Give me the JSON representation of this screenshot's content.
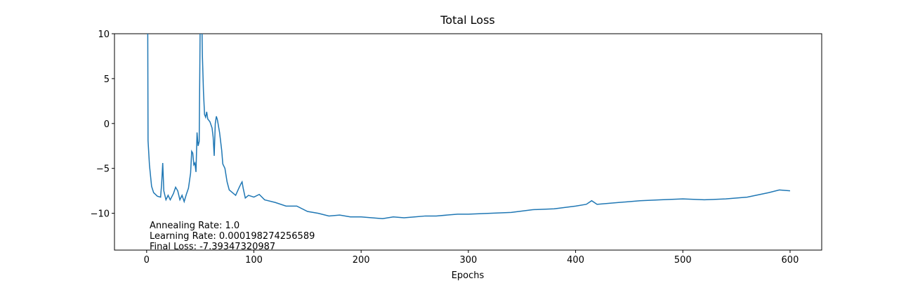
{
  "chart_data": {
    "type": "line",
    "title": "Total Loss",
    "x_label": "Epochs",
    "annotations": [
      "Annealing Rate: 1.0",
      "Learning Rate: 0.000198274256589",
      "Final Loss: -7.39347320987"
    ],
    "color": "#1f77b4",
    "x": [
      1,
      1.3,
      2.6,
      4.6,
      6.5,
      10,
      13,
      14,
      15,
      16,
      18,
      20,
      22,
      25,
      27,
      29,
      31,
      33,
      35,
      37,
      39,
      41,
      42,
      43,
      44,
      45,
      46,
      47,
      48,
      49,
      50,
      51,
      52,
      53,
      54,
      55,
      56,
      57,
      59,
      61,
      62,
      63,
      64,
      65,
      66,
      68,
      70,
      71,
      73,
      75,
      77,
      80,
      83,
      86,
      88,
      89,
      90,
      92,
      95,
      100,
      105,
      110,
      120,
      130,
      140,
      150,
      160,
      170,
      180,
      190,
      200,
      210,
      220,
      230,
      240,
      250,
      260,
      270,
      280,
      290,
      300,
      320,
      340,
      360,
      380,
      400,
      410,
      415,
      420,
      440,
      460,
      480,
      500,
      520,
      540,
      560,
      580,
      590,
      600
    ],
    "values": [
      12,
      -1.9,
      -4.6,
      -7,
      -7.7,
      -8.1,
      -8.2,
      -6.7,
      -4.4,
      -7.5,
      -8.5,
      -8.0,
      -8.5,
      -7.8,
      -7.1,
      -7.5,
      -8.5,
      -8.0,
      -8.7,
      -7.9,
      -7.2,
      -5.5,
      -3.1,
      -3.3,
      -4.6,
      -4.4,
      -5.4,
      -1.0,
      -2.5,
      -2.0,
      12,
      15,
      7.5,
      3.5,
      1.0,
      0.7,
      1.3,
      0.5,
      0.2,
      -0.5,
      -1.5,
      -3.6,
      0.0,
      0.8,
      0.4,
      -1.0,
      -3.0,
      -4.5,
      -5.0,
      -6.5,
      -7.4,
      -7.7,
      -8.0,
      -7.2,
      -6.7,
      -6.5,
      -7.2,
      -8.3,
      -8.0,
      -8.2,
      -7.9,
      -8.5,
      -8.8,
      -9.2,
      -9.2,
      -9.8,
      -10.0,
      -10.3,
      -10.2,
      -10.4,
      -10.4,
      -10.5,
      -10.6,
      -10.4,
      -10.5,
      -10.4,
      -10.3,
      -10.3,
      -10.2,
      -10.1,
      -10.1,
      -10.0,
      -9.9,
      -9.6,
      -9.5,
      -9.2,
      -9.0,
      -8.6,
      -9.0,
      -8.8,
      -8.6,
      -8.5,
      -8.4,
      -8.5,
      -8.4,
      -8.2,
      -7.7,
      -7.4,
      -7.5
    ],
    "xlim": [
      -30,
      629.5
    ],
    "ylim": [
      -14.1,
      10
    ],
    "xticks": [
      0,
      100,
      200,
      300,
      400,
      500,
      600
    ],
    "yticks": [
      {
        "value": -10,
        "label": "−10"
      },
      {
        "value": -5,
        "label": "−5"
      },
      0,
      5,
      10
    ]
  }
}
